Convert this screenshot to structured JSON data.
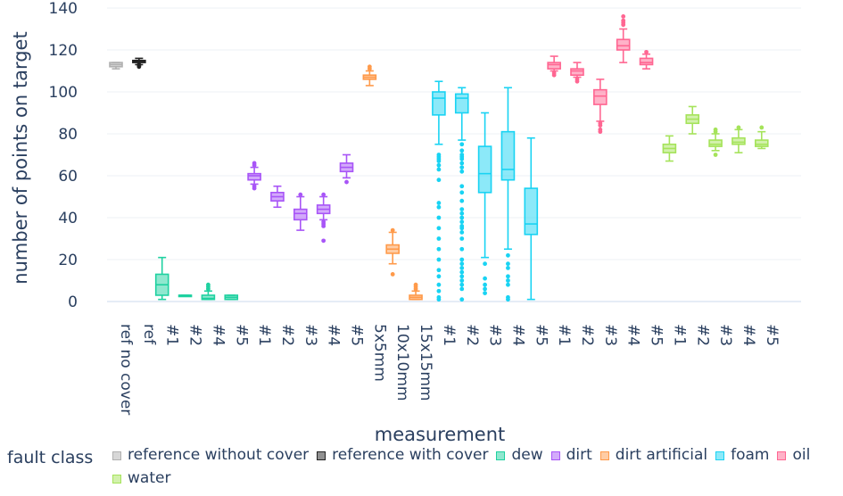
{
  "chart_data": {
    "type": "box",
    "title": "",
    "xlabel": "measurement",
    "ylabel": "number of points on target",
    "ylim": [
      0,
      140
    ],
    "yticks": [
      0,
      20,
      40,
      60,
      80,
      100,
      120,
      140
    ],
    "grid": true,
    "legend": {
      "title": "fault class",
      "placement": "bottom"
    },
    "categories": [
      "ref no cover",
      "ref",
      "#1",
      "#2",
      "#4",
      "#5",
      "#1",
      "#2",
      "#3",
      "#4",
      "#5",
      "5x5mm",
      "10x10mm",
      "15x15mm",
      "#1",
      "#2",
      "#3",
      "#4",
      "#5",
      "#1",
      "#2",
      "#3",
      "#4",
      "#5",
      "#1",
      "#2",
      "#3",
      "#4",
      "#5"
    ],
    "series": [
      {
        "name": "reference without cover",
        "color": "#b0b0b0",
        "boxes": [
          {
            "cat": 0,
            "min": 111,
            "q1": 112,
            "median": 113,
            "q3": 114,
            "max": 114,
            "outliers": []
          }
        ]
      },
      {
        "name": "reference with cover",
        "color": "#222222",
        "boxes": [
          {
            "cat": 1,
            "min": 113,
            "q1": 114,
            "median": 114.5,
            "q3": 115,
            "max": 116,
            "outliers": [
              112,
              112.5,
              113
            ]
          }
        ]
      },
      {
        "name": "dew",
        "color": "#1fd1a0",
        "boxes": [
          {
            "cat": 2,
            "min": 1,
            "q1": 3,
            "median": 8,
            "q3": 13,
            "max": 21,
            "outliers": []
          },
          {
            "cat": 3,
            "min": 3,
            "q1": 3,
            "median": 3,
            "q3": 3,
            "max": 3,
            "outliers": []
          },
          {
            "cat": 4,
            "min": 1,
            "q1": 1,
            "median": 1.5,
            "q3": 3,
            "max": 5,
            "outliers": [
              6,
              7,
              8
            ]
          },
          {
            "cat": 5,
            "min": 1,
            "q1": 1,
            "median": 2,
            "q3": 3,
            "max": 3,
            "outliers": []
          }
        ]
      },
      {
        "name": "dirt",
        "color": "#a855f7",
        "boxes": [
          {
            "cat": 6,
            "min": 56,
            "q1": 58,
            "median": 60,
            "q3": 61,
            "max": 64,
            "outliers": [
              54,
              55,
              65,
              66
            ]
          },
          {
            "cat": 7,
            "min": 45,
            "q1": 48,
            "median": 50,
            "q3": 52,
            "max": 55,
            "outliers": []
          },
          {
            "cat": 8,
            "min": 34,
            "q1": 39,
            "median": 42,
            "q3": 44,
            "max": 50,
            "outliers": [
              51
            ]
          },
          {
            "cat": 9,
            "min": 39,
            "q1": 42,
            "median": 44,
            "q3": 46,
            "max": 50,
            "outliers": [
              29,
              36,
              37,
              38,
              51
            ]
          },
          {
            "cat": 10,
            "min": 59,
            "q1": 62,
            "median": 64,
            "q3": 66,
            "max": 70,
            "outliers": [
              57
            ]
          }
        ]
      },
      {
        "name": "dirt artificial",
        "color": "#ff9a4a",
        "boxes": [
          {
            "cat": 11,
            "min": 103,
            "q1": 106,
            "median": 107,
            "q3": 108,
            "max": 110,
            "outliers": [
              111,
              112
            ]
          },
          {
            "cat": 12,
            "min": 18,
            "q1": 23,
            "median": 25,
            "q3": 27,
            "max": 33,
            "outliers": [
              13,
              34
            ]
          },
          {
            "cat": 13,
            "min": 1,
            "q1": 1,
            "median": 2,
            "q3": 3,
            "max": 5,
            "outliers": [
              6,
              7,
              8
            ]
          }
        ]
      },
      {
        "name": "foam",
        "color": "#19d3f3",
        "boxes": [
          {
            "cat": 14,
            "min": 75,
            "q1": 89,
            "median": 97,
            "q3": 100,
            "max": 105,
            "outliers": [
              1,
              2,
              5,
              8,
              12,
              15,
              20,
              25,
              30,
              35,
              40,
              45,
              47,
              58,
              63,
              65,
              67,
              68,
              69,
              70
            ]
          },
          {
            "cat": 15,
            "min": 77,
            "q1": 90,
            "median": 97,
            "q3": 99,
            "max": 102,
            "outliers": [
              1,
              6,
              8,
              10,
              12,
              14,
              16,
              18,
              20,
              25,
              30,
              33,
              35,
              36,
              38,
              40,
              42,
              44,
              48,
              52,
              55,
              62,
              64,
              66,
              68,
              69,
              70,
              72,
              75
            ]
          },
          {
            "cat": 16,
            "min": 21,
            "q1": 52,
            "median": 61,
            "q3": 74,
            "max": 90,
            "outliers": [
              4,
              6,
              8,
              11,
              18
            ]
          },
          {
            "cat": 17,
            "min": 25,
            "q1": 58,
            "median": 63,
            "q3": 81,
            "max": 102,
            "outliers": [
              1,
              2,
              8,
              10,
              12,
              16,
              18,
              22
            ]
          },
          {
            "cat": 18,
            "min": 1,
            "q1": 32,
            "median": 37,
            "q3": 54,
            "max": 78,
            "outliers": []
          }
        ]
      },
      {
        "name": "oil",
        "color": "#ff6692",
        "boxes": [
          {
            "cat": 19,
            "min": 110,
            "q1": 111,
            "median": 113,
            "q3": 114,
            "max": 117,
            "outliers": [
              108,
              109
            ]
          },
          {
            "cat": 20,
            "min": 107,
            "q1": 108,
            "median": 110,
            "q3": 111,
            "max": 114,
            "outliers": [
              105,
              106
            ]
          },
          {
            "cat": 21,
            "min": 86,
            "q1": 94,
            "median": 98,
            "q3": 101,
            "max": 106,
            "outliers": [
              81,
              82,
              84,
              85
            ]
          },
          {
            "cat": 22,
            "min": 114,
            "q1": 120,
            "median": 122,
            "q3": 125,
            "max": 130,
            "outliers": [
              132,
              133,
              134,
              136
            ]
          },
          {
            "cat": 23,
            "min": 111,
            "q1": 113,
            "median": 114,
            "q3": 116,
            "max": 118,
            "outliers": [
              119
            ]
          }
        ]
      },
      {
        "name": "water",
        "color": "#a5e35a",
        "boxes": [
          {
            "cat": 24,
            "min": 67,
            "q1": 71,
            "median": 73,
            "q3": 75,
            "max": 79,
            "outliers": []
          },
          {
            "cat": 25,
            "min": 80,
            "q1": 85,
            "median": 87,
            "q3": 89,
            "max": 93,
            "outliers": []
          },
          {
            "cat": 26,
            "min": 72,
            "q1": 74,
            "median": 75,
            "q3": 77,
            "max": 80,
            "outliers": [
              70,
              81,
              82
            ]
          },
          {
            "cat": 27,
            "min": 71,
            "q1": 75,
            "median": 76,
            "q3": 78,
            "max": 82,
            "outliers": [
              83
            ]
          },
          {
            "cat": 28,
            "min": 73,
            "q1": 74,
            "median": 75,
            "q3": 77,
            "max": 81,
            "outliers": [
              83
            ]
          }
        ]
      }
    ]
  }
}
